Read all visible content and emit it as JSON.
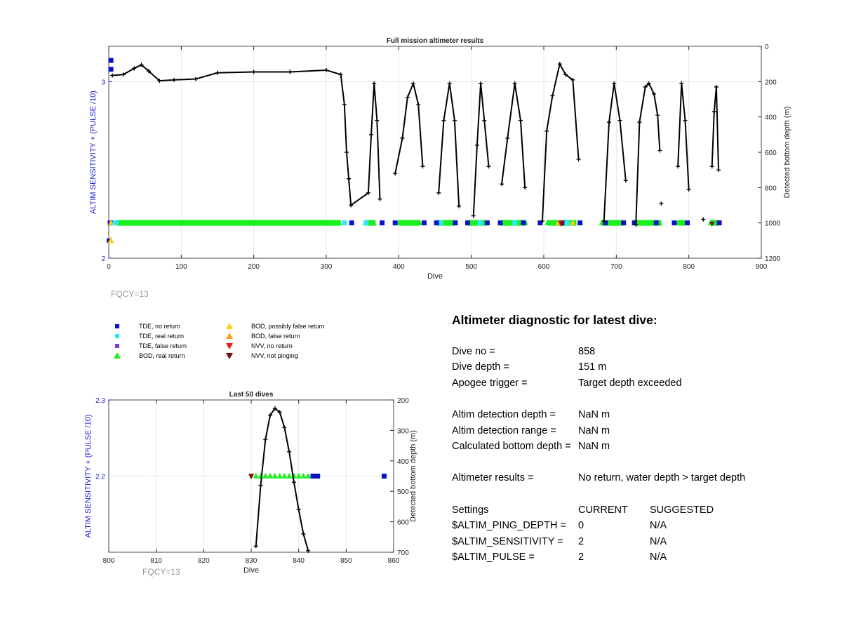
{
  "chart_data": [
    {
      "type": "scatter",
      "title": "Full mission altimeter results",
      "xlabel": "Dive",
      "ylabel_left": "ALTIM SENSITIVITY + (PULSE /10)",
      "ylabel_right": "Detected bottom depth (m)",
      "xlim": [
        0,
        900
      ],
      "xticks": [
        0,
        100,
        200,
        300,
        400,
        500,
        600,
        700,
        800,
        900
      ],
      "ylim_left": [
        2,
        3.2
      ],
      "yticks_left": [
        2,
        3
      ],
      "ylim_right": [
        0,
        1200
      ],
      "right_axis_reversed": true,
      "yticks_right": [
        0,
        200,
        400,
        600,
        800,
        1000,
        1200
      ],
      "grid": true,
      "depth_profile": {
        "name": "Detected bottom depth",
        "x": [
          5,
          20,
          35,
          45,
          55,
          70,
          90,
          120,
          150,
          200,
          250,
          300,
          320,
          325,
          328,
          331,
          334,
          358,
          362,
          366,
          370,
          374,
          null,
          395,
          405,
          412,
          420,
          427,
          433,
          null,
          455,
          462,
          470,
          477,
          483,
          null,
          503,
          508,
          513,
          518,
          524,
          null,
          542,
          550,
          560,
          568,
          574,
          null,
          598,
          604,
          612,
          622,
          630,
          640,
          648,
          null,
          683,
          690,
          697,
          705,
          713,
          null,
          727,
          732,
          740,
          745,
          752,
          757,
          760,
          null,
          785,
          790,
          795,
          800,
          null,
          832,
          835,
          838,
          841
        ],
        "depth": [
          165,
          160,
          125,
          105,
          140,
          195,
          190,
          185,
          150,
          145,
          145,
          135,
          160,
          330,
          600,
          750,
          900,
          830,
          500,
          210,
          420,
          865,
          null,
          720,
          520,
          290,
          210,
          330,
          680,
          null,
          830,
          420,
          210,
          420,
          905,
          null,
          960,
          560,
          210,
          420,
          680,
          null,
          780,
          520,
          210,
          420,
          800,
          null,
          990,
          480,
          280,
          100,
          160,
          190,
          640,
          null,
          990,
          430,
          210,
          420,
          760,
          null,
          1010,
          430,
          230,
          210,
          270,
          390,
          590,
          null,
          680,
          210,
          420,
          810,
          null,
          680,
          370,
          230,
          700
        ]
      },
      "bod_real_return": [
        [
          10,
          320
        ],
        [
          354,
          368
        ],
        [
          400,
          430
        ],
        [
          453,
          478
        ],
        [
          495,
          520
        ],
        [
          540,
          575
        ],
        [
          605,
          645
        ],
        [
          680,
          710
        ],
        [
          725,
          762
        ],
        [
          785,
          795
        ],
        [
          830,
          842
        ]
      ],
      "tde_no_return_x": [
        2,
        335,
        377,
        395,
        435,
        452,
        478,
        495,
        522,
        540,
        572,
        595,
        625,
        650,
        685,
        710,
        725,
        755,
        780,
        798,
        842
      ],
      "tde_real_return_x": [
        5,
        10,
        325,
        355,
        458,
        512,
        560,
        632
      ],
      "bod_possibly_false_x": [
        3,
        620,
        640
      ],
      "nvv_no_return_x": [
        623
      ],
      "nvv_not_pinging_x": [
        625,
        832
      ],
      "tde_high_points": [
        [
          3,
          3.12
        ],
        [
          3,
          3.07
        ]
      ],
      "isolated_depth_points": [
        [
          762,
          890
        ],
        [
          820,
          980
        ]
      ]
    },
    {
      "type": "scatter",
      "title": "Last 50 dives",
      "xlabel": "Dive",
      "ylabel_left": "ALTIM SENSITIVITY + (PULSE /10)",
      "ylabel_right": "Detected bottom depth (m)",
      "xlim": [
        800,
        860
      ],
      "xticks": [
        800,
        810,
        820,
        830,
        840,
        850,
        860
      ],
      "ylim_left": [
        2.1,
        2.3
      ],
      "yticks_left": [
        2.2,
        2.3
      ],
      "ylim_right": [
        200,
        700
      ],
      "right_axis_reversed": true,
      "yticks_right": [
        200,
        300,
        400,
        500,
        600,
        700
      ],
      "grid": true,
      "depth_profile": {
        "name": "Detected bottom depth",
        "x": [
          831,
          832,
          833,
          834,
          835,
          836,
          837,
          838,
          839,
          840,
          841,
          842
        ],
        "depth": [
          680,
          480,
          330,
          250,
          228,
          240,
          290,
          370,
          470,
          560,
          640,
          695
        ]
      },
      "bod_real_return_x": [
        831,
        832,
        833,
        834,
        835,
        836,
        837,
        838,
        839,
        840,
        841,
        842
      ],
      "tde_no_return_x": [
        843,
        844,
        858
      ],
      "nvv_not_pinging_x": [
        830
      ],
      "level": 2.2
    }
  ],
  "fqcy_main": "FQCY=13",
  "fqcy_last": "FQCY=13",
  "legend": [
    {
      "label": "TDE, no return",
      "marker": "square",
      "color": "#0a12c8"
    },
    {
      "label": "TDE, real return",
      "marker": "square",
      "color": "#2ee6ff"
    },
    {
      "label": "TDE, false return",
      "marker": "square",
      "color": "#7a3fd6"
    },
    {
      "label": "BOD, real return",
      "marker": "triangle-up",
      "color": "#19f01e"
    },
    {
      "label": "BOD, possibly false return",
      "marker": "triangle-up",
      "color": "#ffcf1a"
    },
    {
      "label": "BOD, false return",
      "marker": "triangle-up",
      "color": "#ff9a1a"
    },
    {
      "label": "NVV, no return",
      "marker": "triangle-down",
      "color": "#e81e1e"
    },
    {
      "label": "NVV, not pinging",
      "marker": "triangle-down",
      "color": "#7a0a0a"
    }
  ],
  "diagnostic": {
    "title": "Altimeter diagnostic for latest dive:",
    "rows": [
      {
        "key": "Dive no =",
        "value": "858"
      },
      {
        "key": "Dive depth =",
        "value": "151 m"
      },
      {
        "key": "Apogee trigger =",
        "value": "Target depth exceeded"
      },
      {
        "key": "Altim detection depth =",
        "value": "NaN m"
      },
      {
        "key": "Altim detection range =",
        "value": "NaN m"
      },
      {
        "key": "Calculated bottom depth =",
        "value": "NaN m"
      },
      {
        "key": "Altimeter results =",
        "value": "No return, water depth > target depth"
      }
    ],
    "settings_header": {
      "key": "Settings",
      "current": "CURRENT",
      "suggested": "SUGGESTED"
    },
    "settings": [
      {
        "key": "$ALTIM_PING_DEPTH =",
        "current": "0",
        "suggested": "N/A"
      },
      {
        "key": "$ALTIM_SENSITIVITY =",
        "current": "2",
        "suggested": "N/A"
      },
      {
        "key": "$ALTIM_PULSE =",
        "current": "2",
        "suggested": "N/A"
      }
    ]
  },
  "colors": {
    "left_axis": "#1a1ad0",
    "axis": "#222222",
    "grid": "#e6e6e6",
    "profile": "#000000",
    "fqcy": "#9a9a9a"
  }
}
